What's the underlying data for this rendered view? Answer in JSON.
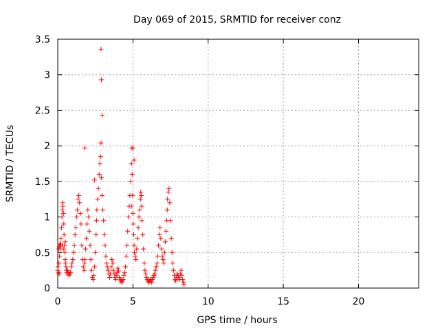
{
  "chart_data": {
    "type": "scatter",
    "title": "Day 069 of 2015, SRMTID for receiver conz",
    "xlabel": "GPS time / hours",
    "ylabel": "SRMTID / TECUs",
    "xlim": [
      0,
      24
    ],
    "ylim": [
      0,
      3.5
    ],
    "x_ticks": [
      0,
      5,
      10,
      15,
      20
    ],
    "y_ticks": [
      0,
      0.5,
      1,
      1.5,
      2,
      2.5,
      3,
      3.5
    ],
    "x_tick_labels": [
      "0",
      "5",
      "10",
      "15",
      "20"
    ],
    "y_tick_labels": [
      "0",
      "0.5",
      "1",
      "1.5",
      "2",
      "2.5",
      "3",
      "3.5"
    ],
    "grid": true,
    "marker": "+",
    "color": "#ff0000",
    "series": [
      {
        "name": "SRMTID",
        "x": [
          0.0,
          0.02,
          0.05,
          0.08,
          0.1,
          0.12,
          0.15,
          0.18,
          0.2,
          0.22,
          0.25,
          0.28,
          0.3,
          0.33,
          0.35,
          0.38,
          0.4,
          0.42,
          0.45,
          0.48,
          0.5,
          0.52,
          0.55,
          0.58,
          0.6,
          0.62,
          0.65,
          0.7,
          0.75,
          0.8,
          0.85,
          0.9,
          0.95,
          1.0,
          1.05,
          1.1,
          1.15,
          1.2,
          1.25,
          1.3,
          1.35,
          1.4,
          1.45,
          1.5,
          1.55,
          1.6,
          1.65,
          1.7,
          1.75,
          1.78,
          1.8,
          1.85,
          1.9,
          1.95,
          2.0,
          2.05,
          2.1,
          2.15,
          2.2,
          2.25,
          2.3,
          2.35,
          2.4,
          2.45,
          2.5,
          2.55,
          2.58,
          2.6,
          2.65,
          2.7,
          2.75,
          2.8,
          2.85,
          2.88,
          2.9,
          2.95,
          3.0,
          3.05,
          3.1,
          3.15,
          3.2,
          3.25,
          3.3,
          3.35,
          3.4,
          3.45,
          3.5,
          3.55,
          3.6,
          3.65,
          3.7,
          3.75,
          3.8,
          3.85,
          3.9,
          3.95,
          4.0,
          4.05,
          4.1,
          4.15,
          4.2,
          4.25,
          4.3,
          4.35,
          4.4,
          4.45,
          4.5,
          4.55,
          4.6,
          4.65,
          4.7,
          4.75,
          4.8,
          4.85,
          4.9,
          4.93,
          4.95,
          4.98,
          5.0,
          5.02,
          5.05,
          5.08,
          5.1,
          5.15,
          5.2,
          5.25,
          5.3,
          5.35,
          5.4,
          5.45,
          5.5,
          5.52,
          5.55,
          5.58,
          5.6,
          5.65,
          5.7,
          5.75,
          5.8,
          5.85,
          5.9,
          5.95,
          6.0,
          6.05,
          6.1,
          6.15,
          6.2,
          6.25,
          6.3,
          6.35,
          6.4,
          6.45,
          6.5,
          6.55,
          6.6,
          6.65,
          6.7,
          6.75,
          6.8,
          6.85,
          6.9,
          6.95,
          7.0,
          7.05,
          7.1,
          7.15,
          7.2,
          7.25,
          7.28,
          7.3,
          7.35,
          7.4,
          7.45,
          7.5,
          7.55,
          7.6,
          7.65,
          7.7,
          7.75,
          7.8,
          7.85,
          7.9,
          7.95,
          8.0,
          8.05,
          8.1,
          8.15,
          8.2,
          8.25,
          8.3,
          8.35,
          8.4,
          2.88,
          2.9,
          2.95,
          2.45,
          1.8,
          5.0,
          5.08,
          4.9,
          0.05,
          0.1,
          0.15,
          0.3,
          0.4,
          0.5
        ],
        "y": [
          0.25,
          0.3,
          0.22,
          0.35,
          0.2,
          0.45,
          0.6,
          0.55,
          0.62,
          0.7,
          0.85,
          1.0,
          1.1,
          1.2,
          1.15,
          1.05,
          0.9,
          0.75,
          0.6,
          0.5,
          0.4,
          0.35,
          0.3,
          0.25,
          0.22,
          0.2,
          0.25,
          0.22,
          0.18,
          0.2,
          0.22,
          0.3,
          0.35,
          0.4,
          0.5,
          0.6,
          0.75,
          0.85,
          1.0,
          1.1,
          1.25,
          1.3,
          1.2,
          1.05,
          0.9,
          0.6,
          0.4,
          0.3,
          0.25,
          0.35,
          0.4,
          0.55,
          0.7,
          0.9,
          1.1,
          1.0,
          0.8,
          0.6,
          0.4,
          0.25,
          0.15,
          0.12,
          0.18,
          0.3,
          0.5,
          0.75,
          0.95,
          1.1,
          1.25,
          1.4,
          1.6,
          1.75,
          1.85,
          2.04,
          1.55,
          1.3,
          1.1,
          0.95,
          0.75,
          0.6,
          0.45,
          0.35,
          0.3,
          0.25,
          0.2,
          0.15,
          0.2,
          0.3,
          0.4,
          0.35,
          0.25,
          0.2,
          0.15,
          0.12,
          0.18,
          0.22,
          0.28,
          0.24,
          0.15,
          0.1,
          0.12,
          0.08,
          0.1,
          0.12,
          0.18,
          0.22,
          0.3,
          0.45,
          0.6,
          0.8,
          1.0,
          1.15,
          1.3,
          1.5,
          1.75,
          1.97,
          1.6,
          1.3,
          1.05,
          0.9,
          0.75,
          0.6,
          0.5,
          0.45,
          0.4,
          0.55,
          0.7,
          0.85,
          1.0,
          1.1,
          1.25,
          1.35,
          1.3,
          1.15,
          0.95,
          0.75,
          0.55,
          0.35,
          0.25,
          0.2,
          0.15,
          0.12,
          0.1,
          0.08,
          0.1,
          0.12,
          0.1,
          0.08,
          0.12,
          0.15,
          0.18,
          0.2,
          0.25,
          0.3,
          0.35,
          0.45,
          0.6,
          0.75,
          0.85,
          0.7,
          0.55,
          0.45,
          0.4,
          0.35,
          0.5,
          0.65,
          0.8,
          0.95,
          1.1,
          1.25,
          1.35,
          1.4,
          1.2,
          0.95,
          0.7,
          0.5,
          0.35,
          0.25,
          0.18,
          0.12,
          0.1,
          0.15,
          0.2,
          0.18,
          0.15,
          0.12,
          0.2,
          0.25,
          0.18,
          0.12,
          0.08,
          0.05,
          3.36,
          2.93,
          2.43,
          1.52,
          1.97,
          1.97,
          1.8,
          1.15,
          0.55,
          0.58,
          0.62,
          0.6,
          0.55,
          0.65
        ]
      }
    ]
  }
}
